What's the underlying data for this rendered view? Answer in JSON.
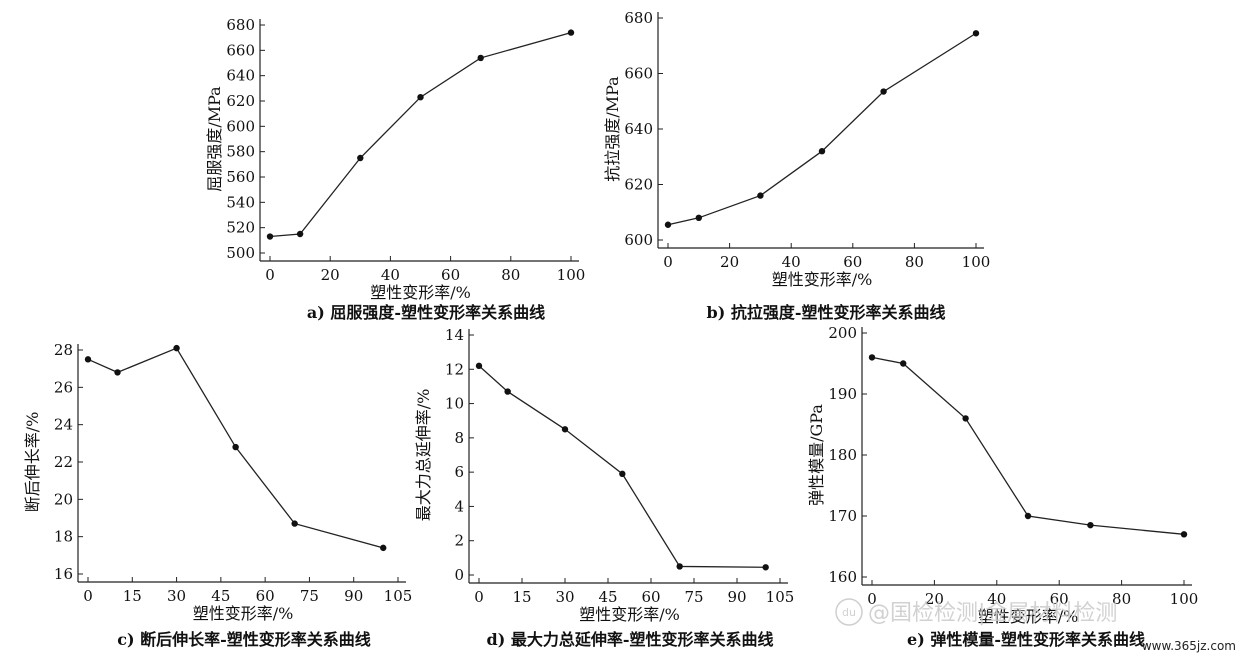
{
  "chart_data": [
    {
      "type": "line",
      "panel": "a",
      "caption": "a) 屈服强度-塑性变形率关系曲线",
      "xlabel": "塑性变形率/%",
      "ylabel": "屈服强度/MPa",
      "xlim": [
        0,
        100
      ],
      "ylim": [
        500,
        680
      ],
      "xticks": [
        0,
        20,
        40,
        60,
        80,
        100
      ],
      "yticks": [
        500,
        520,
        540,
        560,
        580,
        600,
        620,
        640,
        660,
        680
      ],
      "x": [
        0,
        10,
        30,
        50,
        70,
        100
      ],
      "y": [
        513,
        515,
        575,
        623,
        654,
        674
      ],
      "grid": false
    },
    {
      "type": "line",
      "panel": "b",
      "caption": "b) 抗拉强度-塑性变形率关系曲线",
      "xlabel": "塑性变形率/%",
      "ylabel": "抗拉强度/MPa",
      "xlim": [
        0,
        100
      ],
      "ylim": [
        600,
        680
      ],
      "xticks": [
        0,
        20,
        40,
        60,
        80,
        100
      ],
      "yticks": [
        600,
        620,
        640,
        660,
        680
      ],
      "x": [
        0,
        10,
        30,
        50,
        70,
        100
      ],
      "y": [
        605.5,
        608,
        616,
        632,
        653.5,
        674.5
      ],
      "grid": false
    },
    {
      "type": "line",
      "panel": "c",
      "caption": "c) 断后伸长率-塑性变形率关系曲线",
      "xlabel": "塑性变形率/%",
      "ylabel": "断后伸长率/%",
      "xlim": [
        0,
        105
      ],
      "ylim": [
        16,
        28
      ],
      "xticks": [
        0,
        15,
        30,
        45,
        60,
        75,
        90,
        105
      ],
      "yticks": [
        16,
        18,
        20,
        22,
        24,
        26,
        28
      ],
      "x": [
        0,
        10,
        30,
        50,
        70,
        100
      ],
      "y": [
        27.5,
        26.8,
        28.1,
        22.8,
        18.7,
        17.4
      ],
      "grid": false
    },
    {
      "type": "line",
      "panel": "d",
      "caption": "d) 最大力总延伸率-塑性变形率关系曲线",
      "xlabel": "塑性变形率/%",
      "ylabel": "最大力总延伸率/%",
      "xlim": [
        0,
        105
      ],
      "ylim": [
        0,
        14
      ],
      "xticks": [
        0,
        15,
        30,
        45,
        60,
        75,
        90,
        105
      ],
      "yticks": [
        0,
        2,
        4,
        6,
        8,
        10,
        12,
        14
      ],
      "x": [
        0,
        10,
        30,
        50,
        70,
        100
      ],
      "y": [
        12.2,
        10.7,
        8.5,
        5.9,
        0.5,
        0.45
      ],
      "grid": false
    },
    {
      "type": "line",
      "panel": "e",
      "caption": "e) 弹性模量-塑性变形率关系曲线",
      "xlabel": "塑性变形率/%",
      "ylabel": "弹性模量/GPa",
      "xlim": [
        0,
        100
      ],
      "ylim": [
        160,
        200
      ],
      "xticks": [
        0,
        20,
        40,
        60,
        80,
        100
      ],
      "yticks": [
        160,
        170,
        180,
        190,
        200
      ],
      "x": [
        0,
        10,
        30,
        50,
        70,
        100
      ],
      "y": [
        196,
        195,
        186,
        170,
        168.5,
        167
      ],
      "grid": false
    }
  ],
  "watermark": {
    "text": "@国检检测|金属材料检测",
    "url": "www.365jz.com",
    "logo_text": "du"
  }
}
